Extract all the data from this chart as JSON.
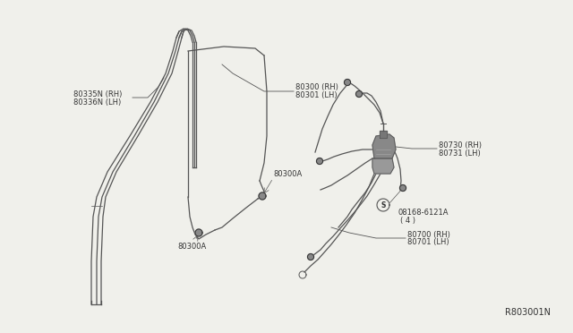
{
  "bg_color": "#f0f0eb",
  "line_color": "#555555",
  "text_color": "#333333",
  "diagram_ref": "R803001N",
  "labels": {
    "80335N_RH": "80335N (RH)",
    "80336N_LH": "80336N (LH)",
    "80300_RH": "80300 (RH)",
    "80301_LH": "80301 (LH)",
    "80300A_mid": "80300A",
    "80300A_bot": "80300A",
    "80730_RH": "80730 (RH)",
    "80731_LH": "80731 (LH)",
    "08168": "08168-6121A",
    "04": "( 4 )",
    "80700_RH": "80700 (RH)",
    "80701_LH": "80701 (LH)"
  },
  "font_size": 6.0
}
